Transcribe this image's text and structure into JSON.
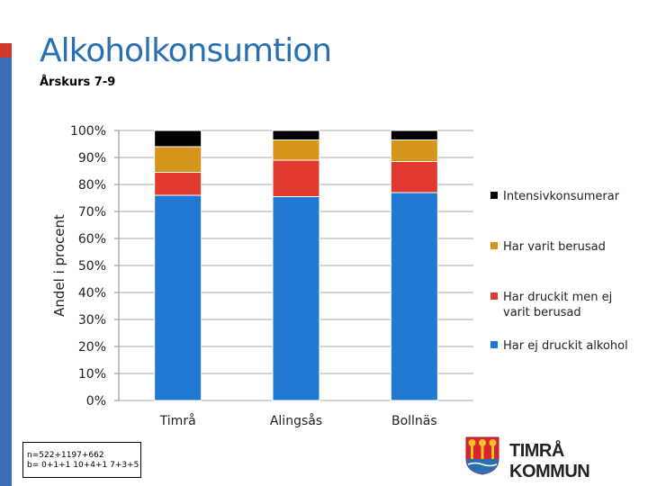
{
  "header": {
    "title": "Alkoholkonsumtion",
    "subtitle": "Årskurs 7-9"
  },
  "chart_data": {
    "type": "bar",
    "stacked": true,
    "ylabel": "Andel i procent",
    "ylim": [
      0,
      100
    ],
    "yticks": [
      "0%",
      "10%",
      "20%",
      "30%",
      "40%",
      "50%",
      "60%",
      "70%",
      "80%",
      "90%",
      "100%"
    ],
    "categories": [
      "Timrå",
      "Alingsås",
      "Bollnäs"
    ],
    "series": [
      {
        "name": "Har ej druckit alkohol",
        "color": "#1f78d1",
        "values": [
          76,
          75.5,
          77
        ]
      },
      {
        "name": "Har druckit men ej varit berusad",
        "color": "#e03a30",
        "values": [
          8.5,
          13.5,
          11.5
        ]
      },
      {
        "name": "Har varit berusad",
        "color": "#d4951a",
        "values": [
          9.5,
          7.5,
          8
        ]
      },
      {
        "name": "Intensivkonsumerar",
        "color": "#000000",
        "values": [
          6,
          3.5,
          3.5
        ]
      }
    ],
    "legend_position": "right"
  },
  "footnote": {
    "line1": "n=522+1197+662",
    "line2": "b= 0+1+1 10+4+1 7+3+5"
  },
  "logo": {
    "text": "TIMRÅ KOMMUN"
  }
}
